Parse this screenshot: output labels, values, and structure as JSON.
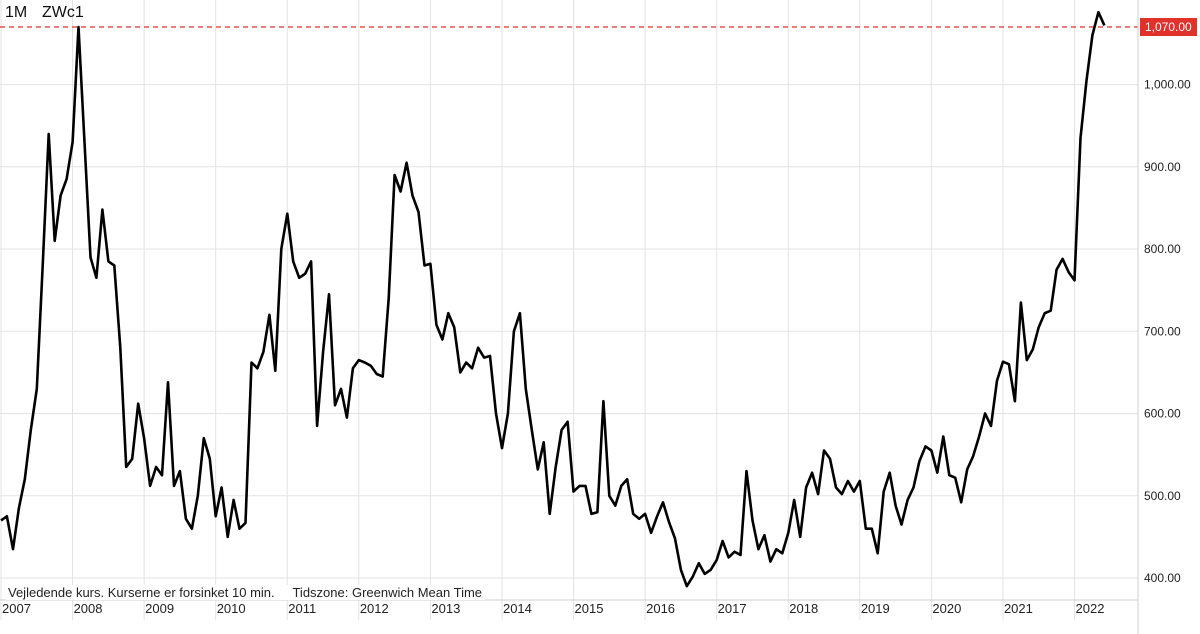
{
  "header": {
    "period": "1M",
    "symbol": "ZWc1"
  },
  "footnote": {
    "delay": "Vejledende kurs. Kurserne er forsinket 10 min.",
    "timezone": "Tidszone: Greenwich Mean Time"
  },
  "colors": {
    "line": "#000000",
    "grid": "#e3e3e3",
    "reference": "#e0312b",
    "badge": "#e0312b"
  },
  "chart_data": {
    "type": "line",
    "title": "",
    "xlabel": "",
    "ylabel": "",
    "ylim": [
      375,
      1090
    ],
    "xlim": [
      2007.0,
      2022.75
    ],
    "y_ticks": [
      {
        "value": 400,
        "label": "400.00"
      },
      {
        "value": 500,
        "label": "500.00"
      },
      {
        "value": 600,
        "label": "600.00"
      },
      {
        "value": 700,
        "label": "700.00"
      },
      {
        "value": 800,
        "label": "800.00"
      },
      {
        "value": 900,
        "label": "900.00"
      },
      {
        "value": 1000,
        "label": "1,000.00"
      }
    ],
    "x_ticks": [
      "2007",
      "2008",
      "2009",
      "2010",
      "2011",
      "2012",
      "2013",
      "2014",
      "2015",
      "2016",
      "2017",
      "2018",
      "2019",
      "2020",
      "2021",
      "2022"
    ],
    "reference_line": {
      "value": 1070,
      "label": "1,070.00"
    },
    "grid": true,
    "series": [
      {
        "x": [
          2007.0,
          2007.083,
          2007.167,
          2007.25,
          2007.333,
          2007.417,
          2007.5,
          2007.583,
          2007.667,
          2007.75,
          2007.833,
          2007.917,
          2008.0,
          2008.083,
          2008.167,
          2008.25,
          2008.333,
          2008.417,
          2008.5,
          2008.583,
          2008.667,
          2008.75,
          2008.833,
          2008.917,
          2009.0,
          2009.083,
          2009.167,
          2009.25,
          2009.333,
          2009.417,
          2009.5,
          2009.583,
          2009.667,
          2009.75,
          2009.833,
          2009.917,
          2010.0,
          2010.083,
          2010.167,
          2010.25,
          2010.333,
          2010.417,
          2010.5,
          2010.583,
          2010.667,
          2010.75,
          2010.833,
          2010.917,
          2011.0,
          2011.083,
          2011.167,
          2011.25,
          2011.333,
          2011.417,
          2011.5,
          2011.583,
          2011.667,
          2011.75,
          2011.833,
          2011.917,
          2012.0,
          2012.083,
          2012.167,
          2012.25,
          2012.333,
          2012.417,
          2012.5,
          2012.583,
          2012.667,
          2012.75,
          2012.833,
          2012.917,
          2013.0,
          2013.083,
          2013.167,
          2013.25,
          2013.333,
          2013.417,
          2013.5,
          2013.583,
          2013.667,
          2013.75,
          2013.833,
          2013.917,
          2014.0,
          2014.083,
          2014.167,
          2014.25,
          2014.333,
          2014.417,
          2014.5,
          2014.583,
          2014.667,
          2014.75,
          2014.833,
          2014.917,
          2015.0,
          2015.083,
          2015.167,
          2015.25,
          2015.333,
          2015.417,
          2015.5,
          2015.583,
          2015.667,
          2015.75,
          2015.833,
          2015.917,
          2016.0,
          2016.083,
          2016.167,
          2016.25,
          2016.333,
          2016.417,
          2016.5,
          2016.583,
          2016.667,
          2016.75,
          2016.833,
          2016.917,
          2017.0,
          2017.083,
          2017.167,
          2017.25,
          2017.333,
          2017.417,
          2017.5,
          2017.583,
          2017.667,
          2017.75,
          2017.833,
          2017.917,
          2018.0,
          2018.083,
          2018.167,
          2018.25,
          2018.333,
          2018.417,
          2018.5,
          2018.583,
          2018.667,
          2018.75,
          2018.833,
          2018.917,
          2019.0,
          2019.083,
          2019.167,
          2019.25,
          2019.333,
          2019.417,
          2019.5,
          2019.583,
          2019.667,
          2019.75,
          2019.833,
          2019.917,
          2020.0,
          2020.083,
          2020.167,
          2020.25,
          2020.333,
          2020.417,
          2020.5,
          2020.583,
          2020.667,
          2020.75,
          2020.833,
          2020.917,
          2021.0,
          2021.083,
          2021.167,
          2021.25,
          2021.333,
          2021.417,
          2021.5,
          2021.583,
          2021.667,
          2021.75,
          2021.833,
          2021.917,
          2022.0,
          2022.083,
          2022.167,
          2022.25,
          2022.333,
          2022.417
        ],
        "y": [
          470,
          475,
          435,
          485,
          520,
          580,
          630,
          780,
          940,
          810,
          865,
          885,
          930,
          1070,
          930,
          790,
          765,
          848,
          785,
          780,
          680,
          535,
          545,
          612,
          570,
          512,
          535,
          525,
          638,
          512,
          530,
          472,
          460,
          500,
          570,
          545,
          475,
          510,
          450,
          495,
          460,
          467,
          662,
          655,
          675,
          720,
          652,
          800,
          843,
          785,
          765,
          770,
          785,
          585,
          675,
          745,
          610,
          630,
          595,
          655,
          665,
          662,
          658,
          648,
          645,
          740,
          890,
          870,
          905,
          865,
          845,
          780,
          782,
          708,
          690,
          722,
          705,
          650,
          662,
          655,
          680,
          668,
          670,
          600,
          558,
          600,
          700,
          722,
          630,
          580,
          532,
          565,
          478,
          535,
          580,
          590,
          505,
          512,
          512,
          478,
          480,
          615,
          500,
          488,
          512,
          520,
          478,
          472,
          478,
          455,
          475,
          492,
          468,
          448,
          410,
          390,
          402,
          418,
          405,
          410,
          422,
          445,
          425,
          432,
          428,
          530,
          470,
          435,
          452,
          420,
          435,
          430,
          455,
          495,
          450,
          510,
          528,
          502,
          555,
          545,
          510,
          502,
          518,
          505,
          518,
          460,
          460,
          430,
          505,
          528,
          488,
          465,
          495,
          510,
          542,
          560,
          555,
          528,
          572,
          525,
          522,
          492,
          532,
          548,
          572,
          600,
          585,
          640,
          663,
          660,
          615,
          735,
          665,
          678,
          705,
          722,
          725,
          775,
          788,
          772,
          762,
          935,
          1005,
          1060,
          1088,
          1072
        ]
      }
    ]
  }
}
